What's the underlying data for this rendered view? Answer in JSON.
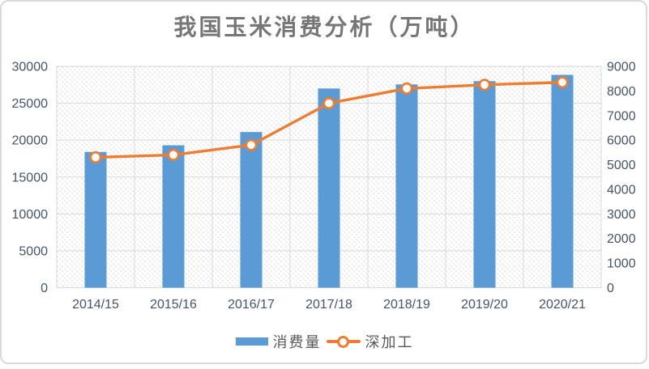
{
  "chart_data": {
    "type": "bar",
    "combo": "bar+line",
    "title": "我国玉米消费分析（万吨）",
    "categories": [
      "2014/15",
      "2015/16",
      "2016/17",
      "2017/18",
      "2018/19",
      "2019/20",
      "2020/21"
    ],
    "series": [
      {
        "name": "消费量",
        "type": "bar",
        "axis": "left",
        "values": [
          18400,
          19300,
          21100,
          27000,
          27550,
          28000,
          28850
        ]
      },
      {
        "name": "深加工",
        "type": "line",
        "axis": "right",
        "marker": "circle",
        "values": [
          5300,
          5400,
          5800,
          7500,
          8100,
          8250,
          8350
        ]
      }
    ],
    "left_axis": {
      "min": 0,
      "max": 30000,
      "step": 5000,
      "tick_labels": [
        "0",
        "5000",
        "10000",
        "15000",
        "20000",
        "25000",
        "30000"
      ]
    },
    "right_axis": {
      "min": 0,
      "max": 9000,
      "step": 1000,
      "tick_labels": [
        "0",
        "1000",
        "2000",
        "3000",
        "4000",
        "5000",
        "6000",
        "7000",
        "8000",
        "9000"
      ]
    },
    "grid": true,
    "legend_position": "bottom",
    "plot_background": "diagonal-hatch"
  },
  "colors": {
    "bar": "#5B9BD5",
    "line": "#ED7D31",
    "grid": "#D9D9D9",
    "hatch": "#DCDCDC",
    "axis_text": "#44546A",
    "title_text": "#767676",
    "legend_text": "#595959",
    "border": "#D9D9D9"
  }
}
